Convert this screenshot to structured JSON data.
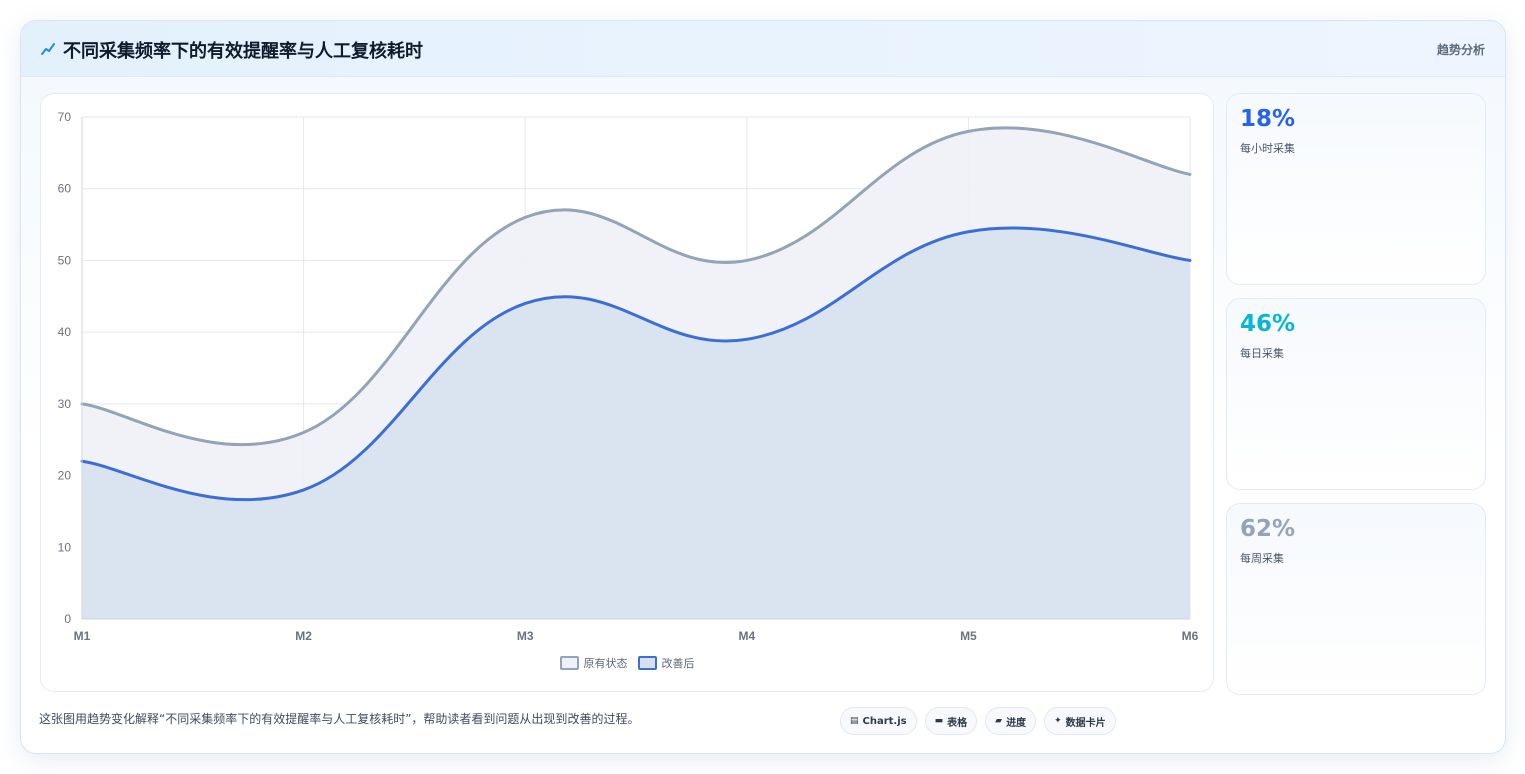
{
  "header": {
    "title": "不同采集频率下的有效提醒率与人工复核耗时",
    "tag": "趋势分析",
    "icon": "trend-line-icon"
  },
  "chart_data": {
    "type": "area",
    "categories": [
      "M1",
      "M2",
      "M3",
      "M4",
      "M5",
      "M6"
    ],
    "ylim": [
      0,
      70
    ],
    "yticks": [
      0,
      10,
      20,
      30,
      40,
      50,
      60,
      70
    ],
    "grid": true,
    "legend_position": "bottom",
    "series": [
      {
        "name": "原有状态",
        "values": [
          30,
          26,
          56,
          50,
          68,
          62
        ],
        "color": "#94a3b8",
        "fill": "#eef1f6"
      },
      {
        "name": "改善后",
        "values": [
          22,
          18,
          44,
          39,
          54,
          50
        ],
        "color": "#3b6fd4",
        "fill": "#d6e0ef"
      }
    ]
  },
  "stats": [
    {
      "value": "18%",
      "label": "每小时采集",
      "color": "#2563eb"
    },
    {
      "value": "46%",
      "label": "每日采集",
      "color": "#06b6d4"
    },
    {
      "value": "62%",
      "label": "每周采集",
      "color": "#94a3b8"
    }
  ],
  "footer": {
    "text": "这张图用趋势变化解释“不同采集频率下的有效提醒率与人工复核耗时”，帮助读者看到问题从出现到改善的过程。",
    "chips": [
      {
        "label": "Chart.js",
        "icon": "chart-icon"
      },
      {
        "label": "表格",
        "icon": "table-icon"
      },
      {
        "label": "进度",
        "icon": "progress-icon"
      },
      {
        "label": "数据卡片",
        "icon": "sparkle-icon"
      }
    ]
  }
}
